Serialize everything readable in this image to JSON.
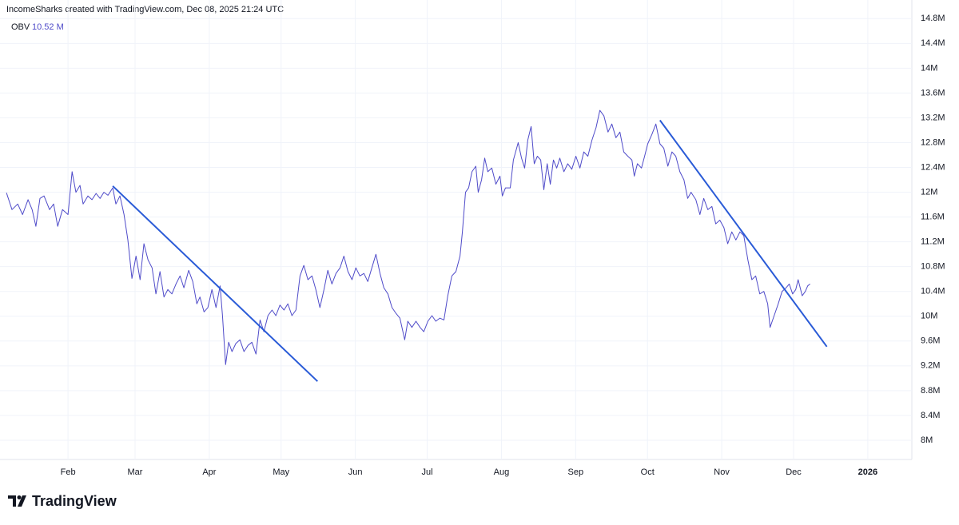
{
  "header": "IncomeSharks created with TradingView.com, Dec 08, 2025 21:24 UTC",
  "brand": "TradingView",
  "chart_data": {
    "type": "line",
    "legend_value": "10.52 M",
    "xlim": [
      2.6,
      383.4
    ],
    "ylim": [
      7.69,
      15.1
    ],
    "grid": true,
    "xticks": [
      {
        "value": 31,
        "label": "Feb"
      },
      {
        "value": 59,
        "label": "Mar"
      },
      {
        "value": 90,
        "label": "Apr"
      },
      {
        "value": 120,
        "label": "May"
      },
      {
        "value": 151,
        "label": "Jun"
      },
      {
        "value": 181,
        "label": "Jul"
      },
      {
        "value": 212,
        "label": "Aug"
      },
      {
        "value": 243,
        "label": "Sep"
      },
      {
        "value": 273,
        "label": "Oct"
      },
      {
        "value": 304,
        "label": "Nov"
      },
      {
        "value": 334,
        "label": "Dec"
      },
      {
        "value": 365,
        "label": "2026"
      }
    ],
    "yticks": [
      {
        "value": 8,
        "label": "8M"
      },
      {
        "value": 8.4,
        "label": "8.4M"
      },
      {
        "value": 8.8,
        "label": "8.8M"
      },
      {
        "value": 9.2,
        "label": "9.2M"
      },
      {
        "value": 9.6,
        "label": "9.6M"
      },
      {
        "value": 10,
        "label": "10M"
      },
      {
        "value": 10.4,
        "label": "10.4M"
      },
      {
        "value": 10.8,
        "label": "10.8M"
      },
      {
        "value": 11.2,
        "label": "11.2M"
      },
      {
        "value": 11.6,
        "label": "11.6M"
      },
      {
        "value": 12,
        "label": "12M"
      },
      {
        "value": 12.4,
        "label": "12.4M"
      },
      {
        "value": 12.8,
        "label": "12.8M"
      },
      {
        "value": 13.2,
        "label": "13.2M"
      },
      {
        "value": 13.6,
        "label": "13.6M"
      },
      {
        "value": 14,
        "label": "14M"
      },
      {
        "value": 14.4,
        "label": "14.4M"
      },
      {
        "value": 14.8,
        "label": "14.8M"
      }
    ],
    "series": [
      {
        "name": "OBV",
        "color": "#4f4bc9",
        "x": [
          5.3,
          7.6,
          10.0,
          12.0,
          14.3,
          16.0,
          17.6,
          19.3,
          21.0,
          23.3,
          25.0,
          26.7,
          28.7,
          31.0,
          32.7,
          34.3,
          36.0,
          37.3,
          39.3,
          41.0,
          42.7,
          44.4,
          46.0,
          47.7,
          49.7,
          51.0,
          52.7,
          54.4,
          56.0,
          57.7,
          59.4,
          61.1,
          62.7,
          64.4,
          66.1,
          67.7,
          69.4,
          71.1,
          72.7,
          74.4,
          76.1,
          77.8,
          79.4,
          81.4,
          83.1,
          84.8,
          86.1,
          87.8,
          89.4,
          91.1,
          92.8,
          94.5,
          95.5,
          96.8,
          98.1,
          99.5,
          101.1,
          102.8,
          104.5,
          106.2,
          107.8,
          109.5,
          111.2,
          112.8,
          114.5,
          116.2,
          117.8,
          119.5,
          121.2,
          122.8,
          124.5,
          126.2,
          127.9,
          129.5,
          131.2,
          132.9,
          134.5,
          136.2,
          137.9,
          139.5,
          141.2,
          142.9,
          144.6,
          146.2,
          147.9,
          149.6,
          151.2,
          152.9,
          154.6,
          156.2,
          157.9,
          159.6,
          161.3,
          162.9,
          164.6,
          166.3,
          167.9,
          169.6,
          171.6,
          172.9,
          174.6,
          176.3,
          178.0,
          179.6,
          181.3,
          183.0,
          184.6,
          186.3,
          188.0,
          189.6,
          191.3,
          193.0,
          194.7,
          195.7,
          197.0,
          198.3,
          199.7,
          201.3,
          202.3,
          203.7,
          205.0,
          206.3,
          208.0,
          209.7,
          211.4,
          212.4,
          213.7,
          215.7,
          217.0,
          219.0,
          220.4,
          221.7,
          223.0,
          224.4,
          225.7,
          227.0,
          228.4,
          229.7,
          231.1,
          232.4,
          233.7,
          235.1,
          236.4,
          238.1,
          239.7,
          241.4,
          243.1,
          244.8,
          246.4,
          248.1,
          249.8,
          251.5,
          253.1,
          254.8,
          256.5,
          258.1,
          259.8,
          261.5,
          263.1,
          264.8,
          266.5,
          267.5,
          268.8,
          270.5,
          271.8,
          273.1,
          274.8,
          276.5,
          278.2,
          279.8,
          281.5,
          283.2,
          284.8,
          286.5,
          288.2,
          289.8,
          291.2,
          293.2,
          294.9,
          296.5,
          298.2,
          299.9,
          301.5,
          303.2,
          304.9,
          306.5,
          308.2,
          309.9,
          311.6,
          313.2,
          314.9,
          316.6,
          318.2,
          319.9,
          321.6,
          323.2,
          324.2,
          325.9,
          327.6,
          329.2,
          330.9,
          332.2,
          333.6,
          334.9,
          335.9,
          337.6,
          338.9,
          339.9,
          340.9
        ],
        "values": [
          11.99,
          11.72,
          11.81,
          11.64,
          11.88,
          11.72,
          11.45,
          11.9,
          11.94,
          11.72,
          11.81,
          11.45,
          11.72,
          11.64,
          12.33,
          12.0,
          12.11,
          11.81,
          11.94,
          11.88,
          11.98,
          11.9,
          12.0,
          11.95,
          12.07,
          11.81,
          11.94,
          11.64,
          11.23,
          10.61,
          10.97,
          10.59,
          11.17,
          10.91,
          10.78,
          10.36,
          10.72,
          10.31,
          10.43,
          10.36,
          10.52,
          10.65,
          10.46,
          10.74,
          10.56,
          10.2,
          10.31,
          10.07,
          10.14,
          10.43,
          10.14,
          10.49,
          10.01,
          9.22,
          9.58,
          9.43,
          9.56,
          9.62,
          9.43,
          9.53,
          9.58,
          9.39,
          9.94,
          9.75,
          10.01,
          10.1,
          10.01,
          10.18,
          10.1,
          10.2,
          10.01,
          10.1,
          10.65,
          10.82,
          10.59,
          10.65,
          10.43,
          10.14,
          10.43,
          10.74,
          10.52,
          10.69,
          10.78,
          10.97,
          10.72,
          10.59,
          10.78,
          10.65,
          10.69,
          10.56,
          10.78,
          11.0,
          10.69,
          10.46,
          10.36,
          10.14,
          10.05,
          9.97,
          9.62,
          9.92,
          9.82,
          9.92,
          9.82,
          9.75,
          9.92,
          10.01,
          9.92,
          9.97,
          9.94,
          10.33,
          10.65,
          10.72,
          10.97,
          11.36,
          12.0,
          12.07,
          12.33,
          12.42,
          12.0,
          12.2,
          12.55,
          12.33,
          12.39,
          12.13,
          12.26,
          11.94,
          12.07,
          12.07,
          12.52,
          12.8,
          12.55,
          12.39,
          12.84,
          13.06,
          12.46,
          12.58,
          12.52,
          12.04,
          12.46,
          12.13,
          12.52,
          12.39,
          12.55,
          12.33,
          12.46,
          12.37,
          12.58,
          12.39,
          12.65,
          12.58,
          12.84,
          13.04,
          13.32,
          13.23,
          12.97,
          13.1,
          12.88,
          12.97,
          12.65,
          12.58,
          12.52,
          12.26,
          12.46,
          12.39,
          12.58,
          12.78,
          12.93,
          13.1,
          12.78,
          12.71,
          12.42,
          12.65,
          12.58,
          12.33,
          12.2,
          11.9,
          12.0,
          11.88,
          11.64,
          11.9,
          11.72,
          11.77,
          11.49,
          11.55,
          11.43,
          11.17,
          11.36,
          11.23,
          11.36,
          11.3,
          10.91,
          10.59,
          10.65,
          10.36,
          10.4,
          10.2,
          9.82,
          10.01,
          10.2,
          10.4,
          10.46,
          10.52,
          10.36,
          10.43,
          10.59,
          10.33,
          10.4,
          10.49,
          10.52
        ]
      }
    ],
    "trend_lines": [
      {
        "color": "#2a5bd7",
        "x": [
          49.7,
          135.2
        ],
        "values": [
          12.1,
          8.95
        ]
      },
      {
        "color": "#2a5bd7",
        "x": [
          278.2,
          347.9
        ],
        "values": [
          13.16,
          9.51
        ]
      }
    ]
  }
}
